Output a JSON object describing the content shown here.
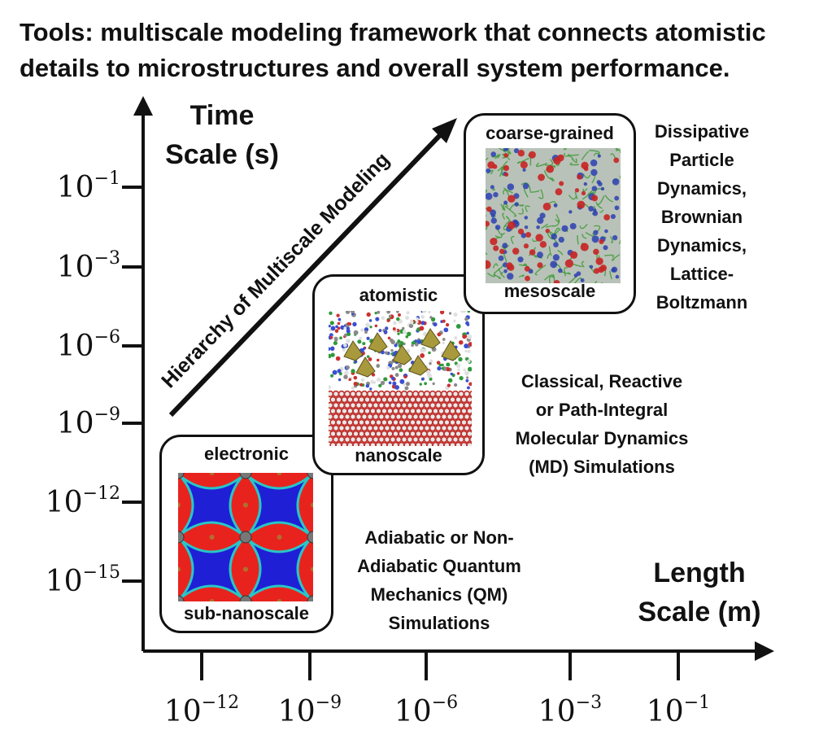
{
  "title": {
    "line1": "Tools: multiscale modeling framework that connects atomistic",
    "line2": "details to microstructures and overall system performance."
  },
  "y_axis": {
    "title_line1": "Time",
    "title_line2": "Scale (s)",
    "ticks": [
      {
        "base": "10",
        "exp": "−1"
      },
      {
        "base": "10",
        "exp": "−3"
      },
      {
        "base": "10",
        "exp": "−6"
      },
      {
        "base": "10",
        "exp": "−9"
      },
      {
        "base": "10",
        "exp": "−12"
      },
      {
        "base": "10",
        "exp": "−15"
      }
    ]
  },
  "x_axis": {
    "title_line1": "Length",
    "title_line2": "Scale (m)",
    "ticks": [
      {
        "base": "10",
        "exp": "−12"
      },
      {
        "base": "10",
        "exp": "−9"
      },
      {
        "base": "10",
        "exp": "−6"
      },
      {
        "base": "10",
        "exp": "−3"
      },
      {
        "base": "10",
        "exp": "−1"
      }
    ]
  },
  "hierarchy_label": "Hierarchy of Multiscale Modeling",
  "boxes": {
    "electronic": {
      "top": "electronic",
      "bottom": "sub-nanoscale",
      "image": "electron-density-map"
    },
    "atomistic": {
      "top": "atomistic",
      "bottom": "nanoscale",
      "image": "molecular-dynamics-snapshot"
    },
    "coarse": {
      "top": "coarse-grained",
      "bottom": "mesoscale",
      "image": "coarse-grained-polymer-snapshot"
    }
  },
  "methods": {
    "qm": [
      "Adiabatic or Non-",
      "Adiabatic Quantum",
      "Mechanics (QM)",
      "Simulations"
    ],
    "md": [
      "Classical, Reactive",
      "or Path-Integral",
      "Molecular Dynamics",
      "(MD) Simulations"
    ],
    "meso": [
      "Dissipative",
      "Particle",
      "Dynamics,",
      "Brownian",
      "Dynamics,",
      "Lattice-",
      "Boltzmann"
    ]
  },
  "colors": {
    "axis": "#111111",
    "density_red": "#e8231e",
    "density_blue": "#1f1fd6",
    "density_cyan": "#27c7c7"
  }
}
